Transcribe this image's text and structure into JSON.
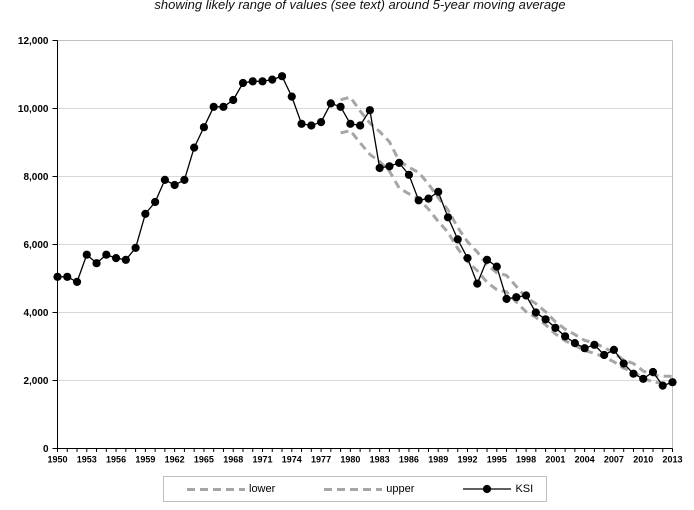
{
  "chart_data": {
    "type": "line",
    "subtitle": "showing likely range of values (see text) around 5-year moving average",
    "ylim": [
      0,
      12000
    ],
    "ytick_step": 2000,
    "ytick_labels": [
      "0",
      "2,000",
      "4,000",
      "6,000",
      "8,000",
      "10,000",
      "12,000"
    ],
    "xtick_step_years": 3,
    "xtick_labels": [
      "1950",
      "1953",
      "1956",
      "1959",
      "1962",
      "1965",
      "1968",
      "1971",
      "1974",
      "1977",
      "1980",
      "1983",
      "1986",
      "1989",
      "1992",
      "1995",
      "1998",
      "2001",
      "2004",
      "2007",
      "2010",
      "2013"
    ],
    "grid": "horizontal",
    "legend_position": "bottom",
    "x_years": [
      1950,
      1951,
      1952,
      1953,
      1954,
      1955,
      1956,
      1957,
      1958,
      1959,
      1960,
      1961,
      1962,
      1963,
      1964,
      1965,
      1966,
      1967,
      1968,
      1969,
      1970,
      1971,
      1972,
      1973,
      1974,
      1975,
      1976,
      1977,
      1978,
      1979,
      1980,
      1981,
      1982,
      1983,
      1984,
      1985,
      1986,
      1987,
      1988,
      1989,
      1990,
      1991,
      1992,
      1993,
      1994,
      1995,
      1996,
      1997,
      1998,
      1999,
      2000,
      2001,
      2002,
      2003,
      2004,
      2005,
      2006,
      2007,
      2008,
      2009,
      2010,
      2011,
      2012,
      2013
    ],
    "series": [
      {
        "name": "lower",
        "style": "dashed",
        "color": "#a6a6a6",
        "start_year": 1979,
        "values": [
          9280,
          9350,
          8990,
          8650,
          8440,
          8160,
          7660,
          7490,
          7340,
          7040,
          6680,
          6360,
          5880,
          5500,
          5230,
          4890,
          4670,
          4610,
          4310,
          4020,
          3860,
          3640,
          3370,
          3170,
          3030,
          2880,
          2800,
          2690,
          2550,
          2360,
          2260,
          2060,
          1960,
          1920,
          1920
        ]
      },
      {
        "name": "upper",
        "style": "dashed",
        "color": "#a6a6a6",
        "start_year": 1979,
        "values": [
          10260,
          10330,
          9930,
          9570,
          9320,
          9020,
          8460,
          8270,
          8120,
          7780,
          7380,
          7020,
          6500,
          6080,
          5780,
          5410,
          5170,
          5090,
          4770,
          4440,
          4260,
          4020,
          3730,
          3510,
          3350,
          3180,
          3100,
          2970,
          2810,
          2600,
          2500,
          2280,
          2160,
          2130,
          2120
        ]
      },
      {
        "name": "KSI",
        "style": "solid-markers",
        "color": "#000000",
        "start_year": 1950,
        "values": [
          5050,
          5050,
          4900,
          5700,
          5450,
          5700,
          5600,
          5550,
          5900,
          6900,
          7250,
          7900,
          7750,
          7900,
          8850,
          9450,
          10050,
          10050,
          10250,
          10750,
          10800,
          10800,
          10850,
          10950,
          10350,
          9550,
          9500,
          9600,
          10150,
          10050,
          9550,
          9500,
          9950,
          8250,
          8300,
          8400,
          8050,
          7300,
          7350,
          7550,
          6800,
          6150,
          5600,
          4850,
          5550,
          5350,
          4400,
          4450,
          4500,
          4000,
          3800,
          3550,
          3300,
          3100,
          2950,
          3050,
          2750,
          2900,
          2500,
          2200,
          2050,
          2250,
          1850,
          1950
        ]
      }
    ],
    "legend": {
      "lower_label": "lower",
      "upper_label": "upper",
      "ksi_label": "KSI"
    }
  },
  "colors": {
    "band": "#a6a6a6",
    "ksi": "#000000",
    "gridline": "#d9d9d9",
    "plot_border": "#c0c0c0",
    "axis": "#000000",
    "legend_border": "#bfbfbf"
  }
}
